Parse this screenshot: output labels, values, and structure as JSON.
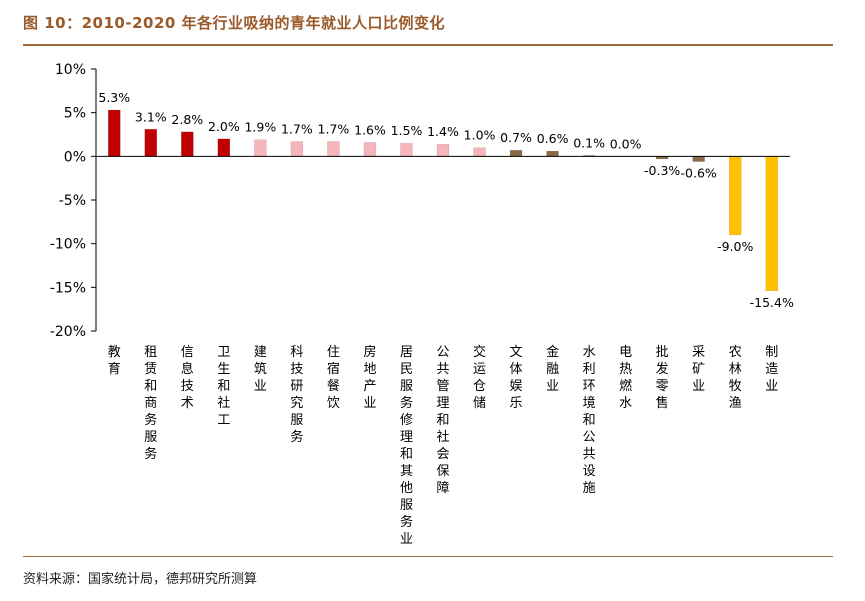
{
  "figure": {
    "title": "图 10：2010-2020 年各行业吸纳的青年就业人口比例变化",
    "source": "资料来源：国家统计局，德邦研究所测算"
  },
  "colors": {
    "dark_red": "#c00000",
    "light_pink": "#f4b6bb",
    "brown": "#8b6b47",
    "yellow": "#ffc000",
    "title_brown": "#9a5a2a"
  },
  "chart_data": {
    "type": "bar",
    "categories": [
      "教育",
      "租赁和商务服务",
      "信息技术",
      "卫生和社工",
      "建筑业",
      "科技研究服务",
      "住宿餐饮",
      "房地产业",
      "居民服务修理和其他服务业",
      "公共管理和社会保障",
      "交运仓储",
      "文体娱乐",
      "金融业",
      "水利环境和公共设施",
      "电热燃水",
      "批发零售",
      "采矿业",
      "农林牧渔",
      "制造业"
    ],
    "values": [
      5.3,
      3.1,
      2.8,
      2.0,
      1.9,
      1.7,
      1.7,
      1.6,
      1.5,
      1.4,
      1.0,
      0.7,
      0.6,
      0.1,
      0.0,
      -0.3,
      -0.6,
      -9.0,
      -15.4
    ],
    "value_labels": [
      "5.3%",
      "3.1%",
      "2.8%",
      "2.0%",
      "1.9%",
      "1.7%",
      "1.7%",
      "1.6%",
      "1.5%",
      "1.4%",
      "1.0%",
      "0.7%",
      "0.6%",
      "0.1%",
      "0.0%",
      "-0.3%",
      "-0.6%",
      "-9.0%",
      "-15.4%"
    ],
    "bar_colors": [
      "dark_red",
      "dark_red",
      "dark_red",
      "dark_red",
      "light_pink",
      "light_pink",
      "light_pink",
      "light_pink",
      "light_pink",
      "light_pink",
      "light_pink",
      "brown",
      "brown",
      "brown",
      "brown",
      "brown",
      "brown",
      "yellow",
      "yellow"
    ],
    "ylim": [
      -20,
      10
    ],
    "yticks": [
      10,
      5,
      0,
      -5,
      -10,
      -15,
      -20
    ],
    "ytick_labels": [
      "10%",
      "5%",
      "0%",
      "-5%",
      "-10%",
      "-15%",
      "-20%"
    ],
    "xlabel": "",
    "ylabel": "",
    "grid": false,
    "legend": "none"
  }
}
